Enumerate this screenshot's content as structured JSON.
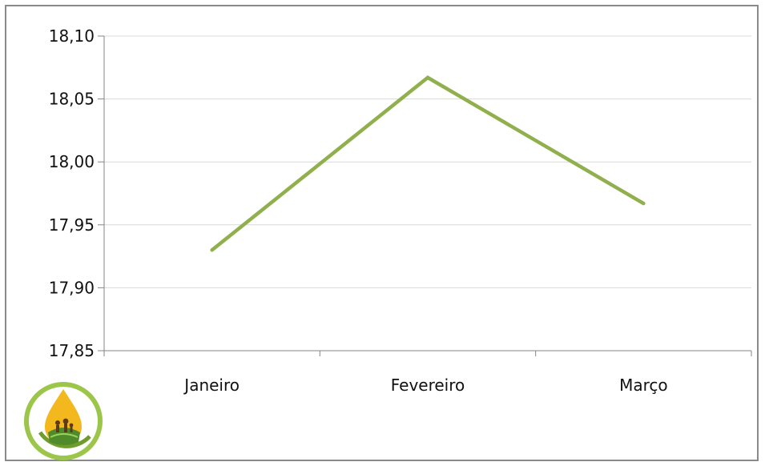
{
  "chart_data": {
    "type": "line",
    "categories": [
      "Janeiro",
      "Fevereiro",
      "Março"
    ],
    "series": [
      {
        "values": [
          17.93,
          18.067,
          17.967
        ],
        "color": "#8fb04c"
      }
    ],
    "ylim": [
      17.85,
      18.1
    ],
    "yticks": [
      17.85,
      17.9,
      17.95,
      18.0,
      18.05,
      18.1
    ],
    "ytick_labels": [
      "17,85",
      "17,90",
      "17,95",
      "18,00",
      "18,05",
      "18,10"
    ],
    "grid": true,
    "title": "",
    "xlabel": "",
    "ylabel": "",
    "legend": "none"
  },
  "logo": {
    "icon": "oil-drop-family-logo"
  }
}
